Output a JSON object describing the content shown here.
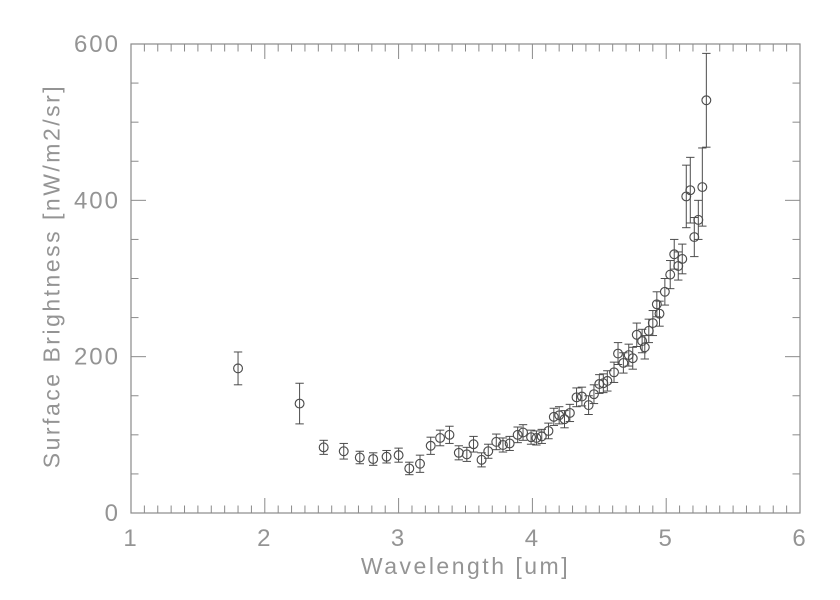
{
  "colors": {
    "background": "#ffffff",
    "axis": "#8a8a8a",
    "tick_text": "#949494",
    "data": "#4c4c4c"
  },
  "chart_data": {
    "type": "scatter",
    "title": "",
    "xlabel": "Wavelength [um]",
    "ylabel": "Surface Brightness [nW/m2/sr]",
    "xlim": [
      1,
      6
    ],
    "ylim": [
      0,
      600
    ],
    "xticks": [
      1,
      2,
      3,
      4,
      5,
      6
    ],
    "yticks": [
      0,
      200,
      400,
      600
    ],
    "x_minor_step": 0.1,
    "y_minor_step": 50,
    "grid": false,
    "legend": null,
    "marker": "open-circle",
    "error_bars": true,
    "points_format": [
      "x",
      "y",
      "yerr"
    ],
    "points": [
      [
        1.8,
        185,
        21
      ],
      [
        2.26,
        140,
        26
      ],
      [
        2.44,
        84,
        9
      ],
      [
        2.59,
        79,
        10
      ],
      [
        2.71,
        71,
        8
      ],
      [
        2.81,
        69,
        8
      ],
      [
        2.91,
        72,
        8
      ],
      [
        3.0,
        74,
        9
      ],
      [
        3.08,
        57,
        8
      ],
      [
        3.16,
        63,
        11
      ],
      [
        3.24,
        86,
        11
      ],
      [
        3.31,
        96,
        10
      ],
      [
        3.38,
        100,
        11
      ],
      [
        3.45,
        77,
        9
      ],
      [
        3.51,
        75,
        9
      ],
      [
        3.56,
        88,
        10
      ],
      [
        3.62,
        68,
        9
      ],
      [
        3.67,
        79,
        9
      ],
      [
        3.73,
        91,
        10
      ],
      [
        3.78,
        87,
        9
      ],
      [
        3.83,
        89,
        9
      ],
      [
        3.89,
        100,
        10
      ],
      [
        3.93,
        103,
        10
      ],
      [
        3.99,
        97,
        9
      ],
      [
        4.03,
        96,
        9
      ],
      [
        4.07,
        98,
        9
      ],
      [
        4.12,
        105,
        10
      ],
      [
        4.16,
        123,
        11
      ],
      [
        4.2,
        125,
        11
      ],
      [
        4.24,
        120,
        11
      ],
      [
        4.28,
        128,
        11
      ],
      [
        4.33,
        148,
        12
      ],
      [
        4.37,
        149,
        12
      ],
      [
        4.42,
        138,
        12
      ],
      [
        4.46,
        152,
        12
      ],
      [
        4.5,
        165,
        12
      ],
      [
        4.53,
        166,
        12
      ],
      [
        4.56,
        169,
        13
      ],
      [
        4.61,
        180,
        13
      ],
      [
        4.64,
        204,
        14
      ],
      [
        4.68,
        192,
        13
      ],
      [
        4.72,
        202,
        14
      ],
      [
        4.75,
        198,
        14
      ],
      [
        4.78,
        228,
        15
      ],
      [
        4.82,
        220,
        15
      ],
      [
        4.84,
        212,
        15
      ],
      [
        4.87,
        233,
        15
      ],
      [
        4.9,
        243,
        16
      ],
      [
        4.93,
        267,
        16
      ],
      [
        4.95,
        255,
        16
      ],
      [
        4.99,
        283,
        17
      ],
      [
        5.03,
        305,
        18
      ],
      [
        5.06,
        331,
        19
      ],
      [
        5.09,
        316,
        18
      ],
      [
        5.12,
        325,
        19
      ],
      [
        5.15,
        405,
        40
      ],
      [
        5.18,
        413,
        42
      ],
      [
        5.21,
        353,
        25
      ],
      [
        5.24,
        375,
        25
      ],
      [
        5.27,
        417,
        50
      ],
      [
        5.3,
        528,
        60
      ]
    ]
  }
}
